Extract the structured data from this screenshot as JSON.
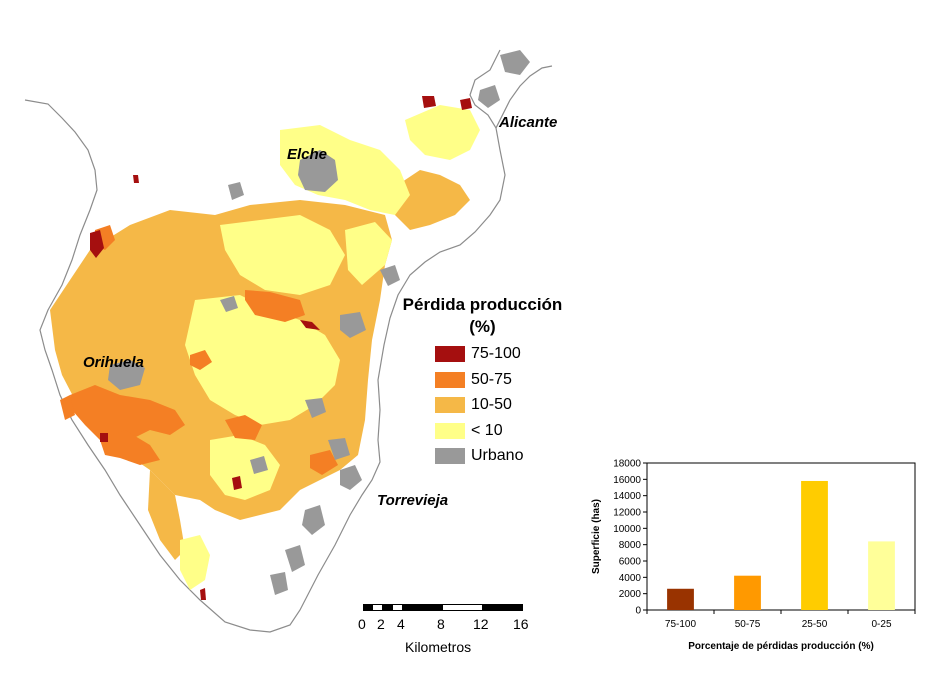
{
  "map": {
    "cities": [
      {
        "id": "alicante",
        "name": "Alicante"
      },
      {
        "id": "elche",
        "name": "Elche"
      },
      {
        "id": "orihuela",
        "name": "Orihuela"
      },
      {
        "id": "torrevieja",
        "name": "Torrevieja"
      }
    ],
    "colors": {
      "c75_100": "#a50f0f",
      "c50_75": "#f47f24",
      "c10_50": "#f5b847",
      "c0_10": "#ffff88",
      "urbano": "#999999",
      "coast": "#8c8c8c"
    }
  },
  "legend": {
    "title_line1": "Pérdida producción",
    "title_line2": "(%)",
    "items": [
      {
        "label": "75-100",
        "color": "#a50f0f"
      },
      {
        "label": "50-75",
        "color": "#f47f24"
      },
      {
        "label": "10-50",
        "color": "#f5b847"
      },
      {
        "label": "< 10",
        "color": "#ffff88"
      },
      {
        "label": "Urbano",
        "color": "#999999"
      }
    ]
  },
  "scalebar": {
    "ticks": [
      "0",
      "2",
      "4",
      "8",
      "12",
      "16"
    ],
    "unit": "Kilometros"
  },
  "chart_data": {
    "type": "bar",
    "categories": [
      "75-100",
      "50-75",
      "25-50",
      "0-25"
    ],
    "values": [
      2600,
      4200,
      15800,
      8400
    ],
    "colors": [
      "#993300",
      "#ff9900",
      "#ffcc00",
      "#ffff99"
    ],
    "xlabel": "Porcentaje de pérdidas producción (%)",
    "ylabel": "Superficie (has)",
    "ylim": [
      0,
      18000
    ],
    "yticks": [
      0,
      2000,
      4000,
      6000,
      8000,
      10000,
      12000,
      14000,
      16000,
      18000
    ],
    "grid": false
  }
}
